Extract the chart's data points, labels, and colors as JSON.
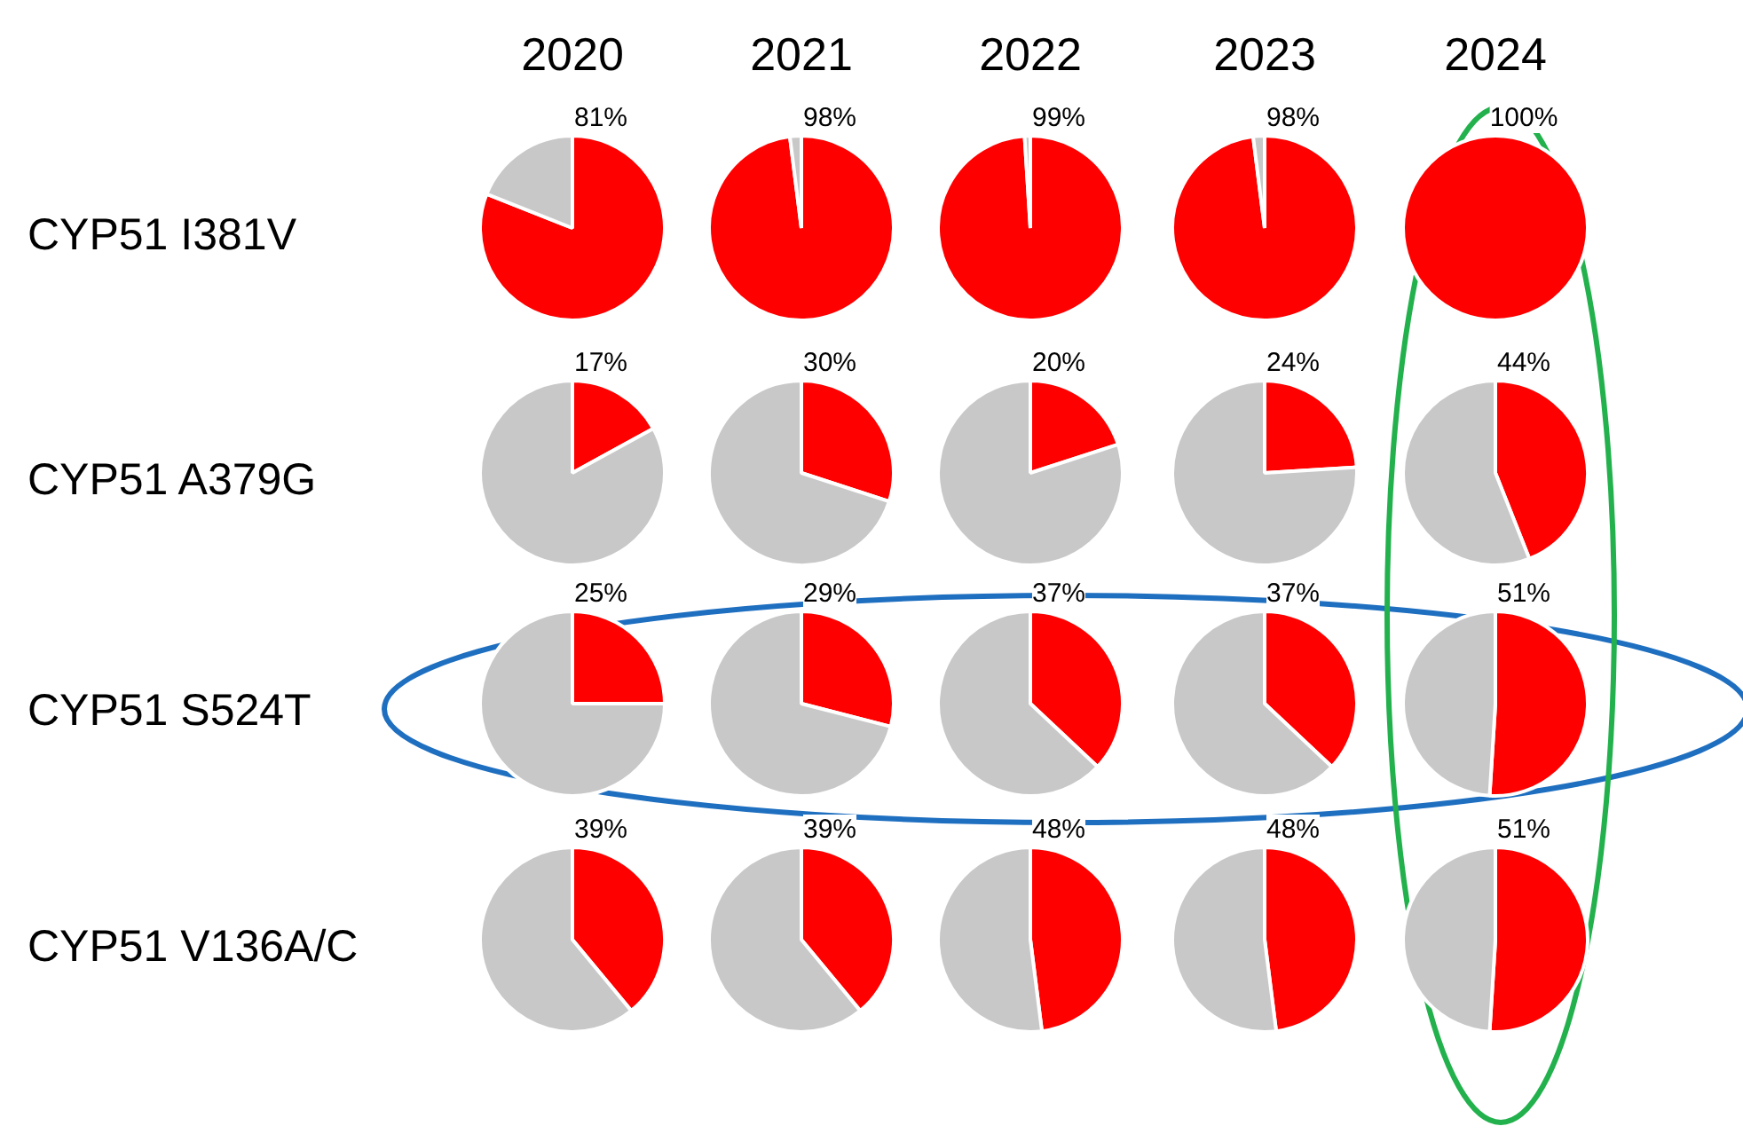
{
  "chart_data": [
    {
      "type": "pie",
      "title": "2020",
      "ylabel": "CYP51 I381V",
      "categories": [
        null,
        null
      ],
      "values": [
        81,
        19
      ],
      "colors": [
        "#ff0000",
        "#c8c8c8"
      ],
      "value_labels": [
        "81%",
        null
      ]
    },
    {
      "type": "pie",
      "title": "2021",
      "categories": [
        null,
        null
      ],
      "values": [
        98,
        2
      ],
      "colors": [
        "#ff0000",
        "#c8c8c8"
      ],
      "value_labels": [
        "98%",
        null
      ]
    },
    {
      "type": "pie",
      "title": "2022",
      "categories": [
        null,
        null
      ],
      "values": [
        99,
        1
      ],
      "colors": [
        "#ff0000",
        "#c8c8c8"
      ],
      "value_labels": [
        "99%",
        null
      ]
    },
    {
      "type": "pie",
      "title": "2023",
      "categories": [
        null,
        null
      ],
      "values": [
        98,
        2
      ],
      "colors": [
        "#ff0000",
        "#c8c8c8"
      ],
      "value_labels": [
        "98%",
        null
      ]
    },
    {
      "type": "pie",
      "title": "2024",
      "categories": [
        null,
        null
      ],
      "values": [
        100,
        0
      ],
      "colors": [
        "#ff0000",
        "#c8c8c8"
      ],
      "value_labels": [
        "100%",
        null
      ]
    },
    {
      "type": "pie",
      "ylabel": "CYP51 A379G",
      "categories": [
        null,
        null
      ],
      "values": [
        17,
        83
      ],
      "colors": [
        "#ff0000",
        "#c8c8c8"
      ],
      "value_labels": [
        "17%",
        null
      ]
    },
    {
      "type": "pie",
      "categories": [
        null,
        null
      ],
      "values": [
        30,
        70
      ],
      "colors": [
        "#ff0000",
        "#c8c8c8"
      ],
      "value_labels": [
        "30%",
        null
      ]
    },
    {
      "type": "pie",
      "categories": [
        null,
        null
      ],
      "values": [
        20,
        80
      ],
      "colors": [
        "#ff0000",
        "#c8c8c8"
      ],
      "value_labels": [
        "20%",
        null
      ]
    },
    {
      "type": "pie",
      "categories": [
        null,
        null
      ],
      "values": [
        24,
        76
      ],
      "colors": [
        "#ff0000",
        "#c8c8c8"
      ],
      "value_labels": [
        "24%",
        null
      ]
    },
    {
      "type": "pie",
      "categories": [
        null,
        null
      ],
      "values": [
        44,
        56
      ],
      "colors": [
        "#ff0000",
        "#c8c8c8"
      ],
      "value_labels": [
        "44%",
        null
      ]
    },
    {
      "type": "pie",
      "ylabel": "CYP51 S524T",
      "categories": [
        null,
        null
      ],
      "values": [
        25,
        75
      ],
      "colors": [
        "#ff0000",
        "#c8c8c8"
      ],
      "value_labels": [
        "25%",
        null
      ]
    },
    {
      "type": "pie",
      "categories": [
        null,
        null
      ],
      "values": [
        29,
        71
      ],
      "colors": [
        "#ff0000",
        "#c8c8c8"
      ],
      "value_labels": [
        "29%",
        null
      ]
    },
    {
      "type": "pie",
      "categories": [
        null,
        null
      ],
      "values": [
        37,
        63
      ],
      "colors": [
        "#ff0000",
        "#c8c8c8"
      ],
      "value_labels": [
        "37%",
        null
      ]
    },
    {
      "type": "pie",
      "categories": [
        null,
        null
      ],
      "values": [
        37,
        63
      ],
      "colors": [
        "#ff0000",
        "#c8c8c8"
      ],
      "value_labels": [
        "37%",
        null
      ]
    },
    {
      "type": "pie",
      "categories": [
        null,
        null
      ],
      "values": [
        51,
        49
      ],
      "colors": [
        "#ff0000",
        "#c8c8c8"
      ],
      "value_labels": [
        "51%",
        null
      ]
    },
    {
      "type": "pie",
      "ylabel": "CYP51 V136A/C",
      "categories": [
        null,
        null
      ],
      "values": [
        39,
        61
      ],
      "colors": [
        "#ff0000",
        "#c8c8c8"
      ],
      "value_labels": [
        "39%",
        null
      ]
    },
    {
      "type": "pie",
      "categories": [
        null,
        null
      ],
      "values": [
        39,
        61
      ],
      "colors": [
        "#ff0000",
        "#c8c8c8"
      ],
      "value_labels": [
        "39%",
        null
      ]
    },
    {
      "type": "pie",
      "categories": [
        null,
        null
      ],
      "values": [
        48,
        52
      ],
      "colors": [
        "#ff0000",
        "#c8c8c8"
      ],
      "value_labels": [
        "48%",
        null
      ]
    },
    {
      "type": "pie",
      "categories": [
        null,
        null
      ],
      "values": [
        48,
        52
      ],
      "colors": [
        "#ff0000",
        "#c8c8c8"
      ],
      "value_labels": [
        "48%",
        null
      ]
    },
    {
      "type": "pie",
      "categories": [
        null,
        null
      ],
      "values": [
        51,
        49
      ],
      "colors": [
        "#ff0000",
        "#c8c8c8"
      ],
      "value_labels": [
        "51%",
        null
      ]
    }
  ]
}
